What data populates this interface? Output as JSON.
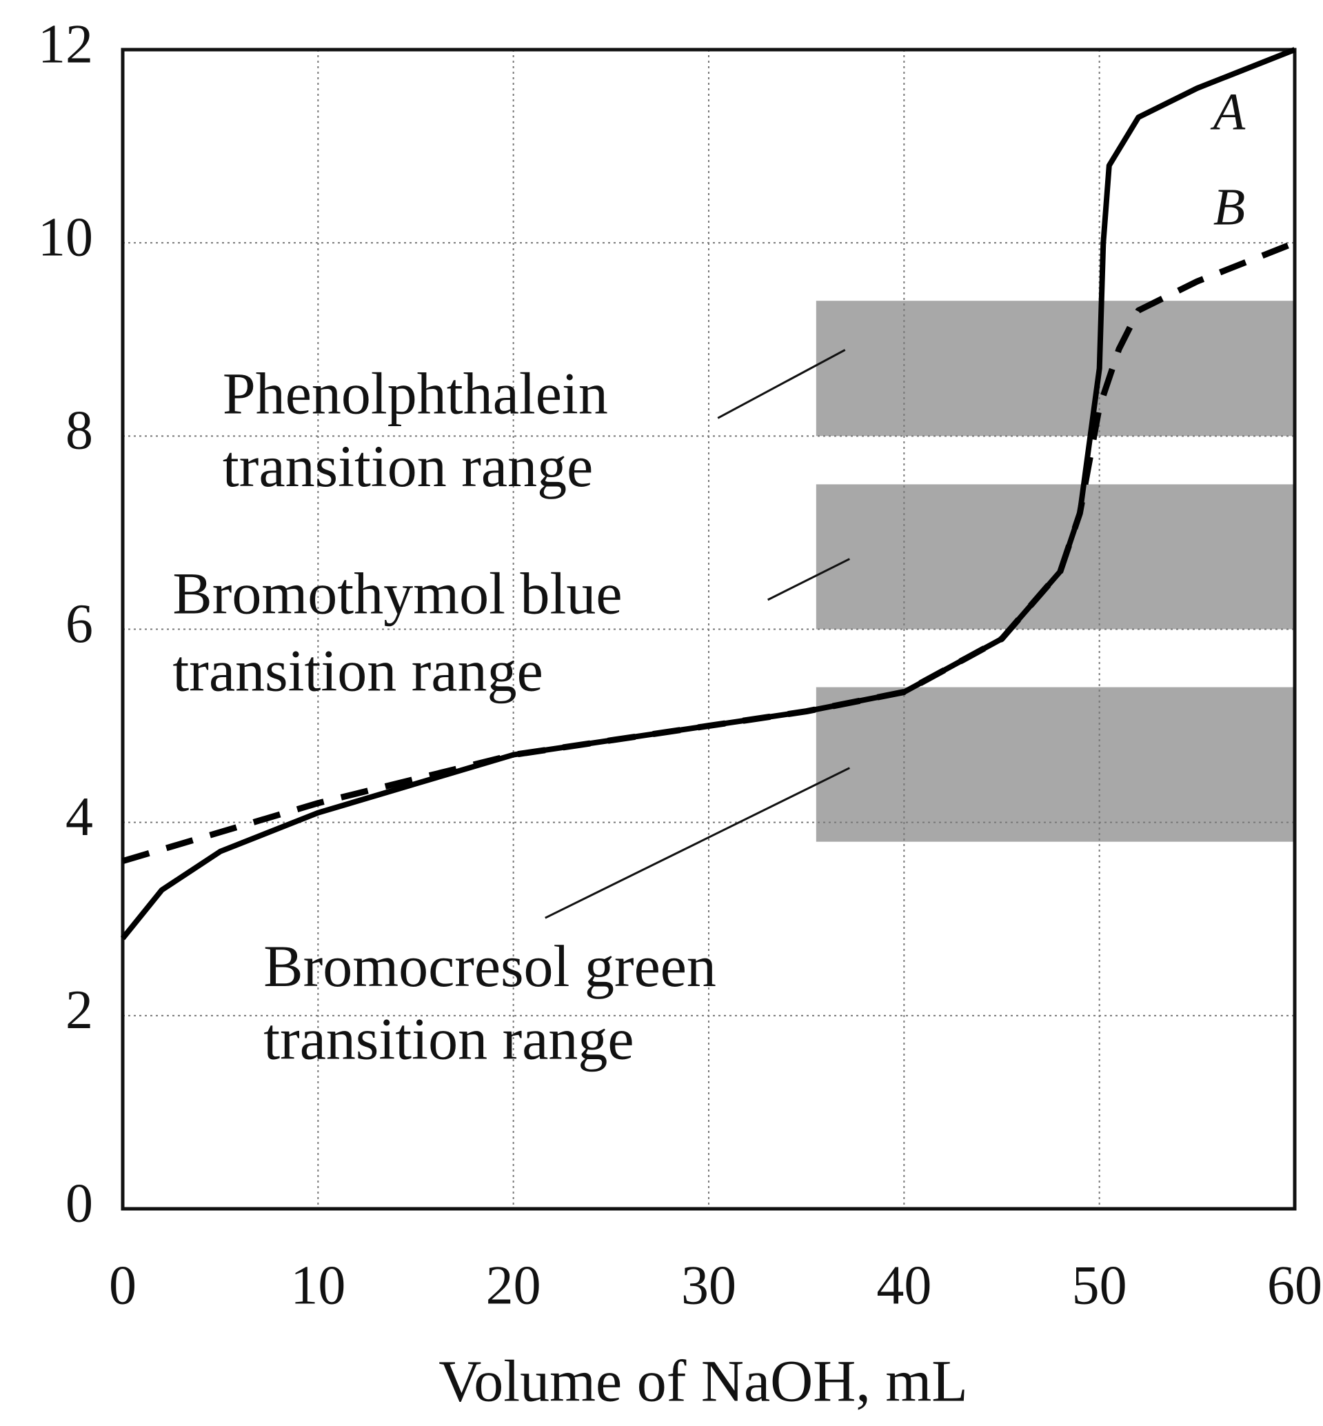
{
  "chart_data": {
    "type": "line",
    "xlabel": "Volume of NaOH, mL",
    "xlim": [
      0,
      60
    ],
    "xticks": [
      0,
      10,
      20,
      30,
      40,
      50,
      60
    ],
    "ylim": [
      0,
      12
    ],
    "yticks": [
      0,
      2,
      4,
      6,
      8,
      10,
      12
    ],
    "grid": true,
    "series": [
      {
        "name": "A",
        "color": "#000000",
        "dash": false,
        "x": [
          0,
          2,
          5,
          10,
          15,
          20,
          25,
          30,
          35,
          40,
          45,
          48,
          49,
          50,
          50.2,
          50.5,
          52,
          55,
          60
        ],
        "values": [
          2.8,
          3.3,
          3.7,
          4.1,
          4.4,
          4.7,
          4.85,
          5.0,
          5.15,
          5.35,
          5.9,
          6.6,
          7.2,
          8.7,
          10.0,
          10.8,
          11.3,
          11.6,
          12.0
        ]
      },
      {
        "name": "B",
        "color": "#000000",
        "dash": true,
        "x": [
          0,
          5,
          10,
          15,
          20,
          25,
          30,
          35,
          40,
          45,
          48,
          49,
          50,
          51,
          52,
          55,
          60
        ],
        "values": [
          3.6,
          3.9,
          4.2,
          4.45,
          4.7,
          4.85,
          5.0,
          5.15,
          5.35,
          5.9,
          6.6,
          7.2,
          8.3,
          8.9,
          9.3,
          9.6,
          10.0
        ]
      }
    ],
    "ranges": [
      {
        "label": [
          "Phenolphthalein",
          "transition range"
        ],
        "low": 8.0,
        "high": 9.4,
        "xstart": 35.5,
        "color": "#a8a8a8"
      },
      {
        "label": [
          "Bromothymol blue",
          "transition range"
        ],
        "low": 6.0,
        "high": 7.5,
        "xstart": 35.5,
        "color": "#a8a8a8"
      },
      {
        "label": [
          "Bromocresol green",
          "transition range"
        ],
        "low": 3.8,
        "high": 5.4,
        "xstart": 35.5,
        "color": "#a8a8a8"
      }
    ]
  }
}
